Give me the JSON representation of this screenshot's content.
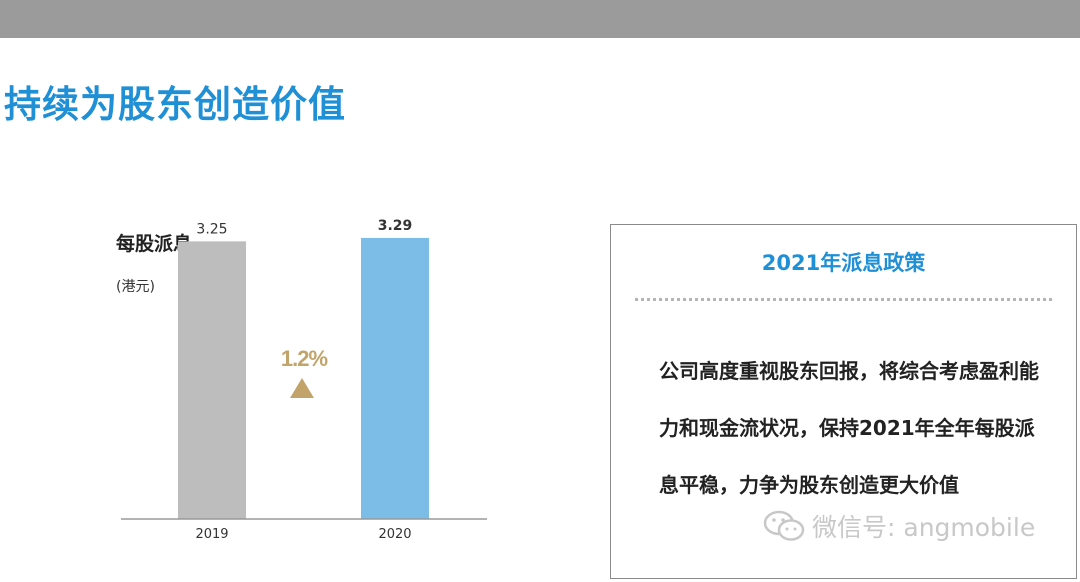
{
  "page": {
    "title": "持续为股东创造价值"
  },
  "chart_data": {
    "type": "bar",
    "title": "每股派息",
    "unit": "(港元)",
    "categories": [
      "2019",
      "2020"
    ],
    "values": [
      3.25,
      3.29
    ],
    "value_labels": [
      "3.25",
      "3.29"
    ],
    "colors": [
      "#bdbdbd",
      "#7bbde6"
    ],
    "ylim": [
      0,
      3.5
    ],
    "change": {
      "label": "1.2%",
      "direction": "up",
      "color": "#c2a46a"
    }
  },
  "policy": {
    "title": "2021年派息政策",
    "body": "公司高度重视股东回报，将综合考虑盈利能力和现金流状况，保持2021年全年每股派息平稳，力争为股东创造更大价值"
  },
  "watermark": {
    "text": "微信号: angmobile",
    "icon": "wechat-icon"
  }
}
